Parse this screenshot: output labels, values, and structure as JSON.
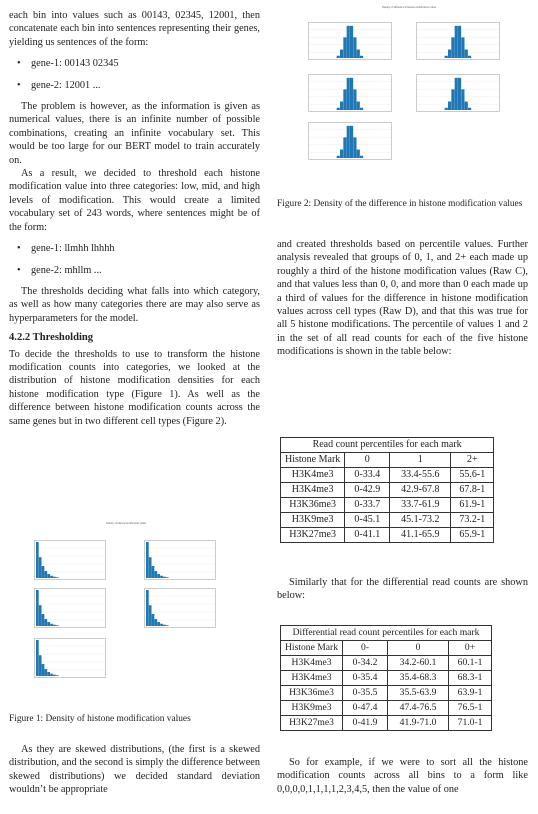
{
  "left": {
    "p1": "each bin into values such as 00143, 02345, 12001, then concatenate each bin into sentences representing their genes, yielding us sentences of the form:",
    "bullets1": [
      "gene-1: 00143 02345",
      "gene-2: 12001 ..."
    ],
    "p2": "The problem is however, as the information is given as numerical values, there is an infinite number of possible combinations, creating an infinite vocabulary set. This would be too large for our BERT model to train accurately on.",
    "p3": "As a result, we decided to threshold each histone modification value into three categories: low, mid, and high levels of modification. This would create a limited vocabulary set of 243 words, where sentences might be of the form:",
    "bullets2": [
      "gene-1: llmhh lhhhh",
      "gene-2: mhllm ..."
    ],
    "p4": "The thresholds deciding what falls into which category, as well as how many categories there are may also serve as hyperparameters for the model.",
    "heading": "4.2.2   Thresholding",
    "p5": "To decide the thresholds to use to transform the histone modification counts into categories, we looked at the distribution of histone modification densities for each histone modification type (Figure 1). As well as the difference between histone modification counts across the same genes but in two different cell types (Figure 2).",
    "fig1_caption": "Figure 1: Density of histone modification values",
    "p6": "As they are skewed distributions, (the first is a skewed distribution, and the second is simply the difference between skewed distributions) we decided standard deviation wouldn’t be appropriate"
  },
  "right": {
    "fig2_caption": "Figure 2: Density of the difference in histone modification values",
    "p1": "and created thresholds based on percentile values. Further analysis revealed that groups of 0, 1, and 2+ each made up roughly a third of the histone modification values (Raw C), and that values less than 0, 0, and more than 0 each made up a third of values for the difference in histone modification values across cell types (Raw D), and that this was true for all 5 histone modifications. The percentile of values 1 and 2 in the set of all read counts for each of the five histone modifications is shown in the table below:",
    "p2": "Similarly that for the differential read counts are shown below:",
    "p3": "So for example, if we were to sort all the histone modification counts across all bins to a form like 0,0,0,0,1,1,1,1,2,3,4,5, then the value of one"
  },
  "table1": {
    "caption": "Read count percentiles for each mark",
    "headers": [
      "Histone Mark",
      "0",
      "1",
      "2+"
    ],
    "rows": [
      [
        "H3K4me3",
        "0-33.4",
        "33.4-55.6",
        "55.6-1"
      ],
      [
        "H3K4me3",
        "0-42.9",
        "42.9-67.8",
        "67.8-1"
      ],
      [
        "H3K36me3",
        "0-33.7",
        "33.7-61.9",
        "61.9-1"
      ],
      [
        "H3K9me3",
        "0-45.1",
        "45.1-73.2",
        "73.2-1"
      ],
      [
        "H3K27me3",
        "0-41.1",
        "41.1-65.9",
        "65.9-1"
      ]
    ]
  },
  "table2": {
    "caption": "Differential read count percentiles for each mark",
    "headers": [
      "Histone Mark",
      "0-",
      "0",
      "0+"
    ],
    "rows": [
      [
        "H3K4me3",
        "0-34.2",
        "34.2-60.1",
        "60.1-1"
      ],
      [
        "H3K4me3",
        "0-35.4",
        "35.4-68.3",
        "68.3-1"
      ],
      [
        "H3K36me3",
        "0-35.5",
        "35.5-63.9",
        "63.9-1"
      ],
      [
        "H3K9me3",
        "0-47.4",
        "47.4-76.5",
        "76.5-1"
      ],
      [
        "H3K27me3",
        "0-41.9",
        "41.9-71.0",
        "71.0-1"
      ]
    ]
  },
  "figures": {
    "fig1_title": "Density of histone modification values",
    "fig2_title": "Density of difference in histone modification values",
    "bar_color": "#1f77b4"
  }
}
